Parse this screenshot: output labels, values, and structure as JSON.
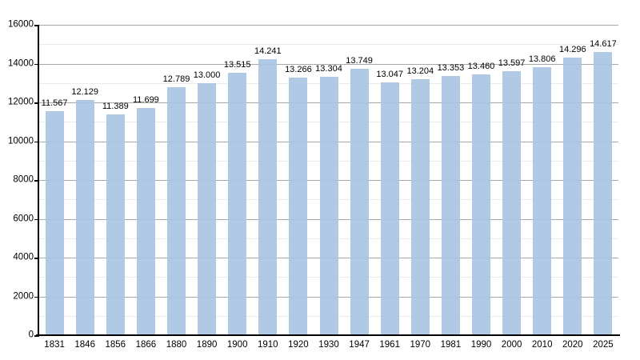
{
  "chart_data": {
    "type": "bar",
    "title": "",
    "xlabel": "",
    "ylabel": "",
    "categories": [
      "1831",
      "1846",
      "1856",
      "1866",
      "1880",
      "1890",
      "1900",
      "1910",
      "1920",
      "1930",
      "1947",
      "1961",
      "1970",
      "1981",
      "1990",
      "2000",
      "2010",
      "2020",
      "2025"
    ],
    "values": [
      11567,
      12129,
      11389,
      11699,
      12789,
      13000,
      13515,
      14241,
      13266,
      13304,
      13749,
      13047,
      13204,
      13353,
      13460,
      13597,
      13806,
      14296,
      14617
    ],
    "value_labels": [
      "11.567",
      "12.129",
      "11.389",
      "11.699",
      "12.789",
      "13.000",
      "13.515",
      "14.241",
      "13.266",
      "13.304",
      "13.749",
      "13.047",
      "13.204",
      "13.353",
      "13.460",
      "13.597",
      "13.806",
      "14.296",
      "14.617"
    ],
    "ylim": [
      0,
      16000
    ],
    "y_major_step": 2000,
    "y_minor_step": 1000,
    "y_tick_labels": [
      "0",
      "2000",
      "4000",
      "6000",
      "8000",
      "10000",
      "12000",
      "14000",
      "16000"
    ],
    "grid": "horizontal",
    "legend_position": "none",
    "colors": {
      "bar_fill": "#a9c6e3",
      "major_gridline": "#a8a8a8",
      "minor_gridline": "#ebebeb",
      "axis": "#000000",
      "text": "#000000",
      "background": "#ffffff"
    }
  }
}
